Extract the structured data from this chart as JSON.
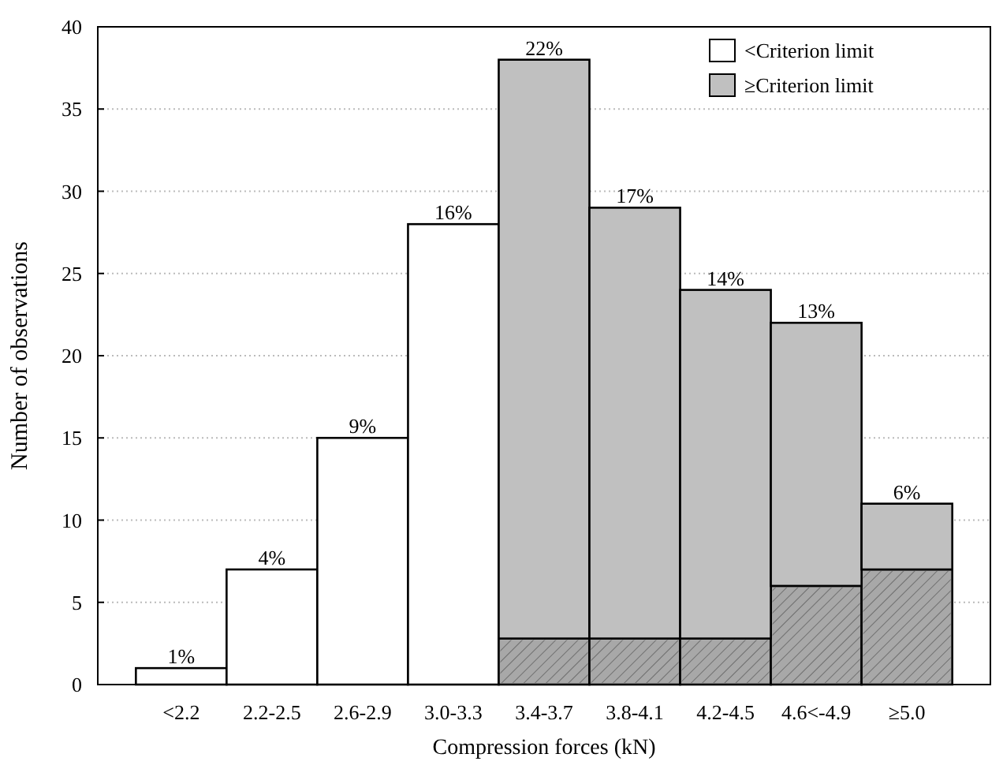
{
  "chart_data": {
    "type": "bar",
    "stacked": true,
    "xlabel": "Compression forces (kN)",
    "ylabel": "Number of observations",
    "categories": [
      "<2.2",
      "2.2-2.5",
      "2.6-2.9",
      "3.0-3.3",
      "3.4-3.7",
      "3.8-4.1",
      "4.2-4.5",
      "4.6<-4.9",
      "≥5.0"
    ],
    "series": [
      {
        "name": "<Criterion limit",
        "color": "#ffffff",
        "values": [
          1,
          7,
          15,
          28,
          null,
          null,
          null,
          null,
          null
        ]
      },
      {
        "color": "#a8a8a8",
        "values": [
          null,
          null,
          null,
          null,
          2.8,
          2.8,
          2.8,
          6,
          7
        ]
      },
      {
        "name": "≥Criterion limit",
        "color": "#c0c0c0",
        "values": [
          null,
          null,
          null,
          null,
          35.2,
          26.2,
          21.2,
          16,
          4
        ]
      }
    ],
    "annotations": [
      {
        "text": "1%",
        "x": "<2.2",
        "y": 1
      },
      {
        "text": "4%",
        "x": "2.2-2.5",
        "y": 7
      },
      {
        "text": "9%",
        "x": "2.6-2.9",
        "y": 15
      },
      {
        "text": "16%",
        "x": "3.0-3.3",
        "y": 28
      },
      {
        "text": "22%",
        "x": "3.4-3.7",
        "y": 38
      },
      {
        "text": "17%",
        "x": "3.8-4.1",
        "y": 29
      },
      {
        "text": "14%",
        "x": "4.2-4.5",
        "y": 24
      },
      {
        "text": "13%",
        "x": "4.6<-4.9",
        "y": 22
      },
      {
        "text": "6%",
        "x": "≥5.0",
        "y": 11
      }
    ],
    "ylim": [
      0,
      40
    ],
    "yticks": [
      0,
      5,
      10,
      15,
      20,
      25,
      30,
      35,
      40
    ],
    "grid": "y",
    "legend": "top right"
  }
}
